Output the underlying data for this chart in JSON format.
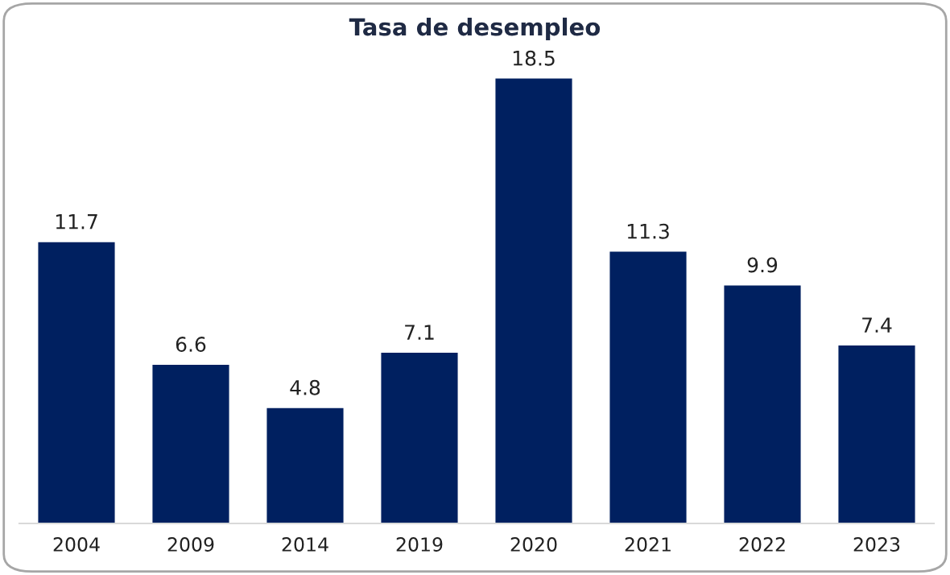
{
  "chart_data": {
    "type": "bar",
    "title": "Tasa de desempleo",
    "categories": [
      "2004",
      "2009",
      "2014",
      "2019",
      "2020",
      "2021",
      "2022",
      "2023"
    ],
    "values": [
      11.7,
      6.6,
      4.8,
      7.1,
      18.5,
      11.3,
      9.9,
      7.4
    ],
    "color": "#002060",
    "data_labels": true,
    "grid": false,
    "legend": false
  }
}
